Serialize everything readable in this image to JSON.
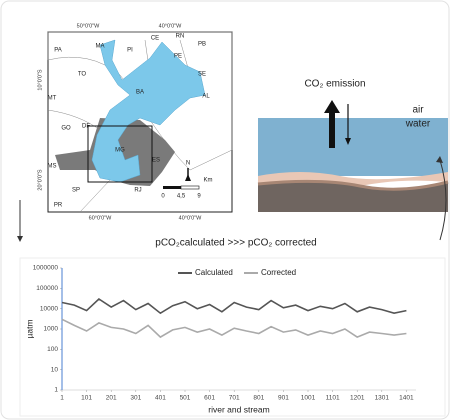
{
  "map": {
    "states": [
      "PA",
      "MA",
      "PI",
      "CE",
      "RN",
      "PB",
      "PE",
      "AL",
      "SE",
      "BA",
      "TO",
      "MT",
      "GO",
      "DF",
      "MG",
      "ES",
      "MS",
      "SP",
      "RJ",
      "PR"
    ],
    "top_coords": [
      "50°0'0\"W",
      "40°0'0\"W"
    ],
    "bottom_coords": [
      "60°0'0\"W",
      "40°0'0\"W"
    ],
    "left_coords": [
      "10°0'0\"S",
      "20°0'0\"S"
    ],
    "north": "N",
    "scale_labels": [
      "0",
      "4,5",
      "9"
    ],
    "scale_unit": "Km"
  },
  "diagram": {
    "emission": "CO₂ emission",
    "air": "air",
    "water": "water"
  },
  "caption": "pCO₂calculated >>> pCO₂ corrected",
  "chart_data": {
    "type": "line",
    "x_label": "river and stream",
    "y_label": "µatm",
    "yscale": "log",
    "x": [
      1,
      51,
      101,
      151,
      201,
      251,
      301,
      351,
      401,
      451,
      501,
      551,
      601,
      651,
      701,
      751,
      801,
      851,
      901,
      951,
      1001,
      1051,
      1101,
      1151,
      1201,
      1251,
      1301,
      1351,
      1401
    ],
    "series": [
      {
        "name": "Calculated",
        "color": "#555555",
        "values": [
          20000,
          15000,
          8000,
          30000,
          12000,
          25000,
          9000,
          18000,
          6000,
          14000,
          22000,
          10000,
          16000,
          7000,
          20000,
          12000,
          9000,
          25000,
          11000,
          15000,
          8000,
          13000,
          10000,
          18000,
          7000,
          12000,
          9000,
          6000,
          8000
        ]
      },
      {
        "name": "Corrected",
        "color": "#aaaaaa",
        "values": [
          3000,
          1500,
          800,
          2000,
          1200,
          1000,
          600,
          1500,
          400,
          900,
          1200,
          700,
          1000,
          500,
          1100,
          800,
          600,
          1300,
          700,
          900,
          500,
          800,
          600,
          1000,
          400,
          700,
          600,
          500,
          600
        ]
      }
    ],
    "xlim": [
      1,
      1440
    ],
    "xticks": [
      1,
      101,
      201,
      301,
      401,
      501,
      601,
      701,
      801,
      901,
      1001,
      1101,
      1201,
      1301,
      1401
    ],
    "ylim": [
      1,
      1000000
    ],
    "yticks": [
      1,
      10,
      100,
      1000,
      10000,
      100000,
      1000000
    ],
    "legend": "top"
  }
}
